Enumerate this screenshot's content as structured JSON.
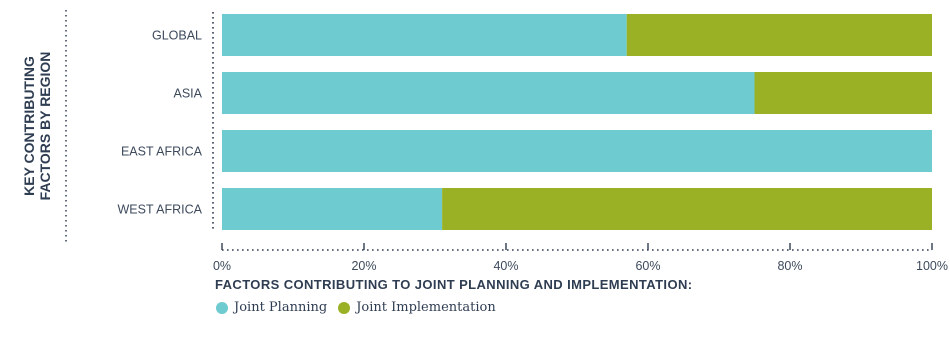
{
  "side_title": [
    "KEY CONTRIBUTING",
    "FACTORS BY REGION"
  ],
  "legend_title": "FACTORS CONTRIBUTING TO JOINT PLANNING AND IMPLEMENTATION:",
  "colors": {
    "planning": "#6ecbcf",
    "implementation": "#9ab126",
    "dots": "#2f3d52"
  },
  "chart_data": {
    "type": "bar",
    "orientation": "horizontal",
    "stacked": true,
    "categories": [
      "GLOBAL",
      "ASIA",
      "EAST AFRICA",
      "WEST AFRICA"
    ],
    "series": [
      {
        "name": "Joint Planning",
        "values": [
          57,
          75,
          100,
          31
        ]
      },
      {
        "name": "Joint Implementation",
        "values": [
          43,
          25,
          0,
          69
        ]
      }
    ],
    "x_ticks": [
      "0%",
      "20%",
      "40%",
      "60%",
      "80%",
      "100%"
    ],
    "xlim": [
      0,
      100
    ],
    "grid": false,
    "legend_position": "bottom-left"
  }
}
